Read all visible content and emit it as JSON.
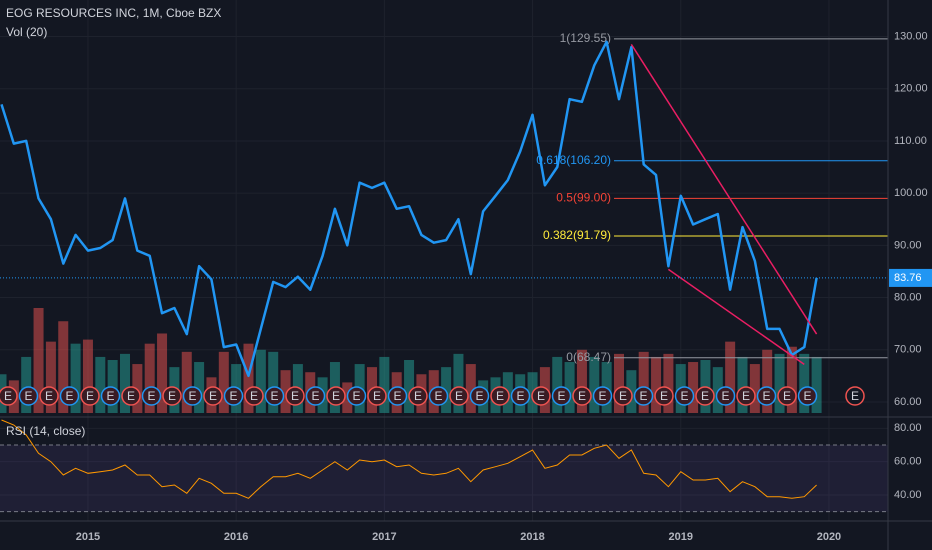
{
  "header": {
    "title": "EOG RESOURCES INC, 1M, Cboe BZX",
    "volume_label": "Vol (20)",
    "rsi_label": "RSI (14, close)",
    "earnings_label": "E"
  },
  "chart_data": [
    {
      "type": "line",
      "categories": [
        null,
        null,
        null,
        null,
        null,
        null,
        null,
        "2015",
        null,
        null,
        null,
        null,
        null,
        null,
        null,
        null,
        null,
        null,
        null,
        "2016",
        null,
        null,
        null,
        null,
        null,
        null,
        null,
        null,
        null,
        null,
        null,
        "2017",
        null,
        null,
        null,
        null,
        null,
        null,
        null,
        null,
        null,
        null,
        null,
        "2018",
        null,
        null,
        null,
        null,
        null,
        null,
        null,
        null,
        null,
        null,
        null,
        "2019",
        null,
        null,
        null,
        null,
        null,
        null,
        null,
        null,
        null,
        null,
        null,
        "2020"
      ],
      "values": [
        117,
        109.5,
        110,
        99,
        95,
        86.5,
        92,
        89,
        89.5,
        91,
        99,
        89,
        88,
        77,
        78,
        73,
        86,
        83.5,
        70.5,
        71,
        65,
        74,
        83,
        82,
        84,
        81.5,
        88,
        97,
        90,
        102,
        101,
        102,
        97,
        97.5,
        92,
        90.5,
        91,
        95,
        84.5,
        96.5,
        99.5,
        102.5,
        108,
        115,
        101.5,
        105,
        118,
        117.5,
        124.5,
        129,
        118,
        128,
        105.5,
        103.5,
        86,
        99.5,
        94,
        95,
        96,
        81.5,
        93.5,
        87,
        74,
        74,
        69,
        70.5,
        83.76,
        null
      ],
      "color": "#2196f3",
      "ylim": [
        57.5,
        137
      ],
      "yticks": [
        {
          "value": 60,
          "label": "60.00"
        },
        {
          "value": 70,
          "label": "70.00"
        },
        {
          "value": 80,
          "label": "80.00"
        },
        {
          "value": 90,
          "label": "90.00"
        },
        {
          "value": 100,
          "label": "100.00"
        },
        {
          "value": 110,
          "label": "110.00"
        },
        {
          "value": 120,
          "label": "120.00"
        },
        {
          "value": 130,
          "label": "130.00"
        }
      ],
      "grid": true,
      "volume": {
        "values": [
          38,
          32,
          55,
          103,
          70,
          90,
          68,
          72,
          55,
          52,
          58,
          48,
          68,
          78,
          45,
          60,
          50,
          35,
          60,
          48,
          68,
          62,
          60,
          42,
          48,
          40,
          35,
          50,
          30,
          48,
          45,
          55,
          40,
          52,
          38,
          42,
          45,
          58,
          48,
          32,
          35,
          40,
          38,
          40,
          45,
          55,
          50,
          62,
          55,
          50,
          58,
          42,
          60,
          55,
          58,
          48,
          50,
          52,
          45,
          70,
          55,
          48,
          62,
          58,
          65,
          58,
          55,
          null
        ],
        "up_color": "#26a69a",
        "down_color": "#ef5350"
      },
      "fib_levels": [
        {
          "label": "1(129.55)",
          "value": 129.55,
          "color": "#9598a1"
        },
        {
          "label": "0.618(106.20)",
          "value": 106.2,
          "color": "#2196f3"
        },
        {
          "label": "0.5(99.00)",
          "value": 99.0,
          "color": "#f44336"
        },
        {
          "label": "0.382(91.79)",
          "value": 91.79,
          "color": "#ffeb3b"
        },
        {
          "label": "0(68.47)",
          "value": 68.47,
          "color": "#9598a1"
        }
      ],
      "trendlines": {
        "color": "#e91e63",
        "lines": [
          [
            [
              51,
              128.5
            ],
            [
              66,
              73
            ]
          ],
          [
            [
              54,
              85.4
            ],
            [
              65,
              67.2
            ]
          ]
        ]
      }
    },
    {
      "type": "line",
      "values": [
        85,
        82,
        76,
        65,
        60,
        52,
        56,
        53,
        54,
        55,
        58,
        52,
        52,
        45,
        46,
        41,
        50,
        47,
        41,
        41,
        38,
        45,
        51,
        51,
        53,
        50,
        55,
        60,
        55,
        61,
        60,
        61,
        57,
        58,
        53,
        52,
        53,
        56,
        48,
        55,
        57,
        59,
        63,
        67,
        56,
        58,
        64,
        64,
        68,
        70,
        62,
        67,
        53,
        52,
        45,
        54,
        49,
        49,
        50,
        42,
        48,
        45,
        39,
        39,
        38,
        39,
        46,
        null
      ],
      "color": "#ff9800",
      "ylim": [
        25,
        85
      ],
      "yticks": [
        {
          "value": 40,
          "label": "40.00"
        },
        {
          "value": 60,
          "label": "60.00"
        },
        {
          "value": 80,
          "label": "80.00"
        }
      ],
      "band": [
        30,
        70
      ],
      "band_color": "#7e57c2"
    }
  ]
}
